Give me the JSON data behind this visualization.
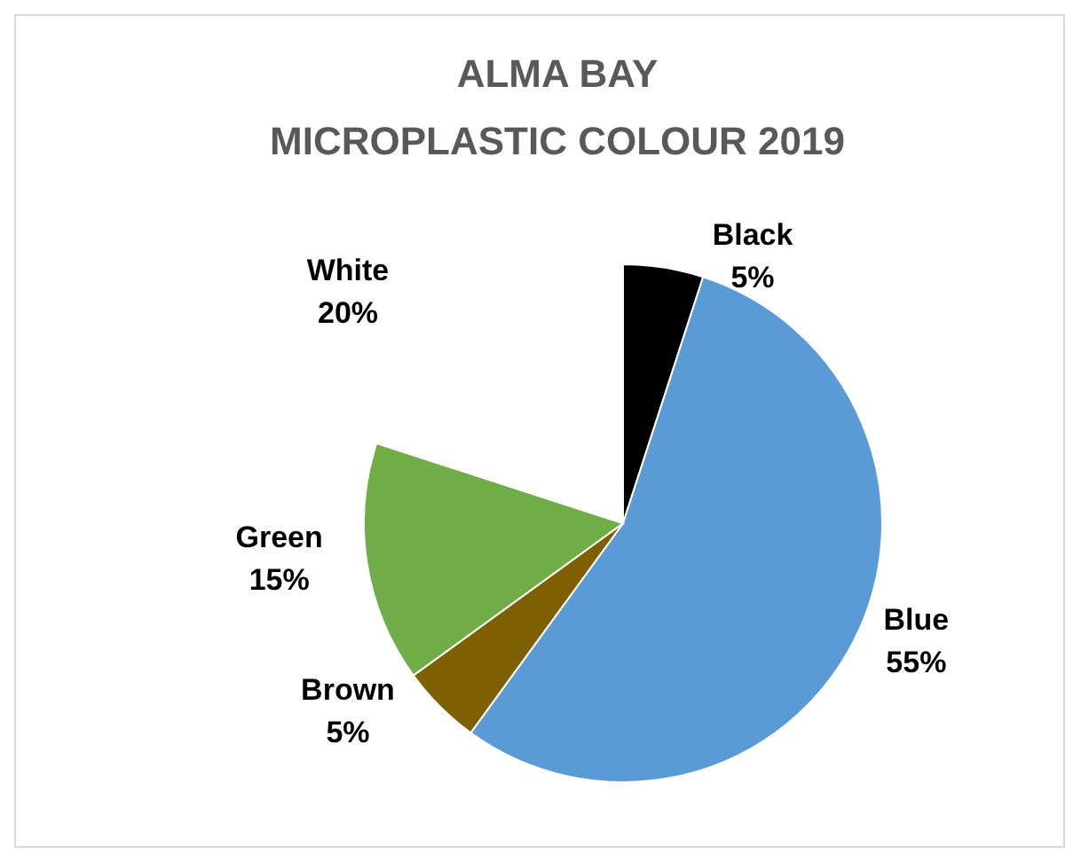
{
  "chart_data": {
    "type": "pie",
    "title": "ALMA BAY\nMICROPLASTIC COLOUR 2019",
    "categories": [
      "Black",
      "Blue",
      "Brown",
      "Green",
      "White"
    ],
    "values": [
      5,
      55,
      5,
      15,
      20
    ],
    "value_labels": [
      "5%",
      "55%",
      "5%",
      "15%",
      "20%"
    ],
    "colors": [
      "#000000",
      "#5b9bd5",
      "#7f6000",
      "#70ad47",
      "#ffffff"
    ]
  }
}
